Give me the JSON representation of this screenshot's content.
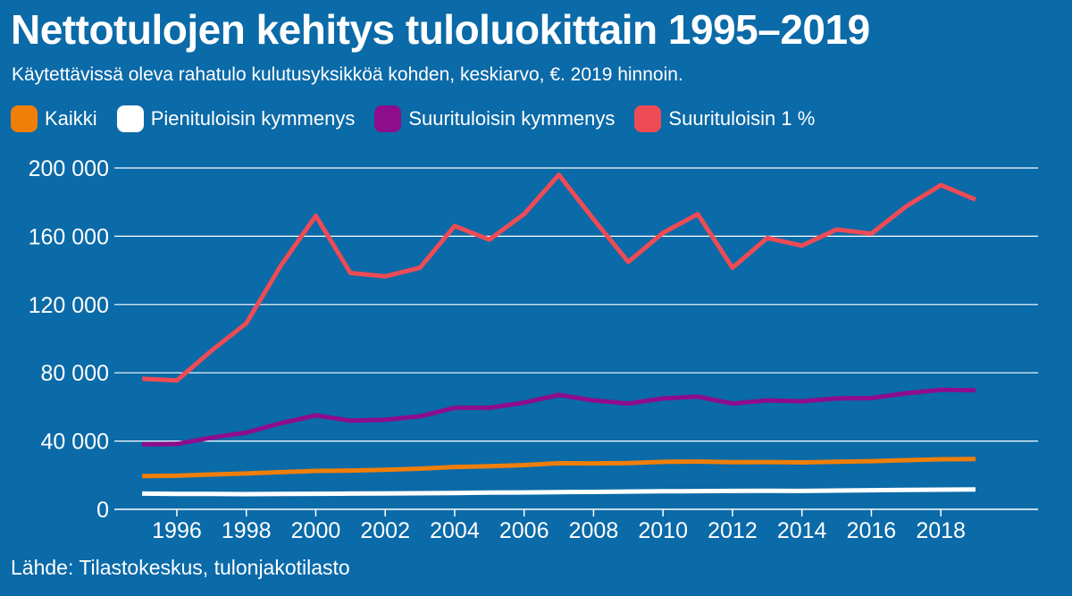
{
  "title": "Nettotulojen kehitys tuloluokittain 1995–2019",
  "subtitle": "Käytettävissä oleva rahatulo kulutusyksikköä kohden, keskiarvo, €. 2019 hinnoin.",
  "source": "Lähde: Tilastokeskus, tulonjakotilasto",
  "colors": {
    "background": "#0b6aa8",
    "grid": "#ffffff",
    "text": "#ffffff"
  },
  "chart_data": {
    "type": "line",
    "title": "Nettotulojen kehitys tuloluokittain 1995–2019",
    "subtitle": "Käytettävissä oleva rahatulo kulutusyksikköä kohden, keskiarvo, €. 2019 hinnoin.",
    "xlabel": "",
    "ylabel": "",
    "x": [
      1995,
      1996,
      1997,
      1998,
      1999,
      2000,
      2001,
      2002,
      2003,
      2004,
      2005,
      2006,
      2007,
      2008,
      2009,
      2010,
      2011,
      2012,
      2013,
      2014,
      2015,
      2016,
      2017,
      2018,
      2019
    ],
    "xticks": [
      1996,
      1998,
      2000,
      2002,
      2004,
      2006,
      2008,
      2010,
      2012,
      2014,
      2016,
      2018
    ],
    "xtick_labels": [
      "1996",
      "1998",
      "2000",
      "2002",
      "2004",
      "2006",
      "2008",
      "2010",
      "2012",
      "2014",
      "2016",
      "2018"
    ],
    "xlim": [
      1994.2,
      2020.8
    ],
    "ylim": [
      0,
      200000
    ],
    "yticks": [
      0,
      40000,
      80000,
      120000,
      160000,
      200000
    ],
    "ytick_labels": [
      "0",
      "40 000",
      "80 000",
      "120 000",
      "160 000",
      "200 000"
    ],
    "grid": true,
    "legend_position": "top-left",
    "series": [
      {
        "name": "Kaikki",
        "color": "#f07f09",
        "values": [
          19500,
          19700,
          20400,
          21000,
          21800,
          22500,
          22700,
          23200,
          23800,
          24800,
          25300,
          25900,
          27000,
          26900,
          27100,
          27800,
          28000,
          27600,
          27700,
          27500,
          27900,
          28200,
          28800,
          29300,
          29500
        ]
      },
      {
        "name": "Pienituloisin kymmenys",
        "color": "#ffffff",
        "values": [
          9200,
          9000,
          9000,
          8900,
          9000,
          9100,
          9200,
          9300,
          9400,
          9600,
          9800,
          9900,
          10100,
          10200,
          10400,
          10600,
          10700,
          10800,
          10900,
          10800,
          11000,
          11200,
          11400,
          11500,
          11600
        ]
      },
      {
        "name": "Suurituloisin kymmenys",
        "color": "#8e0d8c",
        "values": [
          38000,
          38300,
          42000,
          45000,
          50500,
          55000,
          52000,
          52500,
          54500,
          59500,
          59500,
          62500,
          67000,
          63800,
          62000,
          65000,
          66000,
          62000,
          63800,
          63300,
          65000,
          65200,
          68000,
          70000,
          69800
        ]
      },
      {
        "name": "Suurituloisin 1 %",
        "color": "#ee4b55",
        "values": [
          76500,
          75500,
          93000,
          109000,
          143000,
          172000,
          138500,
          136500,
          141500,
          166000,
          158000,
          173000,
          196000,
          170000,
          145000,
          162000,
          173000,
          141500,
          159000,
          154500,
          164000,
          161500,
          177500,
          190000,
          181500
        ]
      }
    ]
  }
}
